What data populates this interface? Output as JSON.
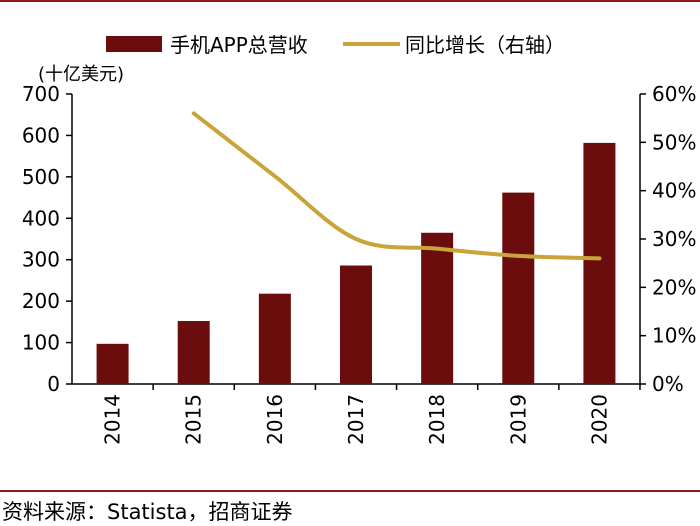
{
  "chart_data": {
    "type": "bar",
    "categories": [
      "2014",
      "2015",
      "2016",
      "2017",
      "2018",
      "2019",
      "2020"
    ],
    "series": [
      {
        "name": "手机APP总营收",
        "kind": "bar",
        "axis": "left",
        "color": "#6b0d0d",
        "values": [
          97,
          152,
          218,
          286,
          365,
          462,
          582
        ]
      },
      {
        "name": "同比增长（右轴）",
        "kind": "line",
        "axis": "right",
        "color": "#c8a439",
        "values": [
          null,
          56,
          43,
          30,
          28,
          26.5,
          26
        ]
      }
    ],
    "ylabel": "(十亿美元)",
    "ylim": [
      0,
      700
    ],
    "yticks": [
      "0",
      "100",
      "200",
      "300",
      "400",
      "500",
      "600",
      "700"
    ],
    "y2lim": [
      0,
      60
    ],
    "y2ticks": [
      "0%",
      "10%",
      "20%",
      "30%",
      "40%",
      "50%",
      "60%"
    ],
    "legend_position": "top"
  },
  "source": "资料来源：Statista，招商证券"
}
